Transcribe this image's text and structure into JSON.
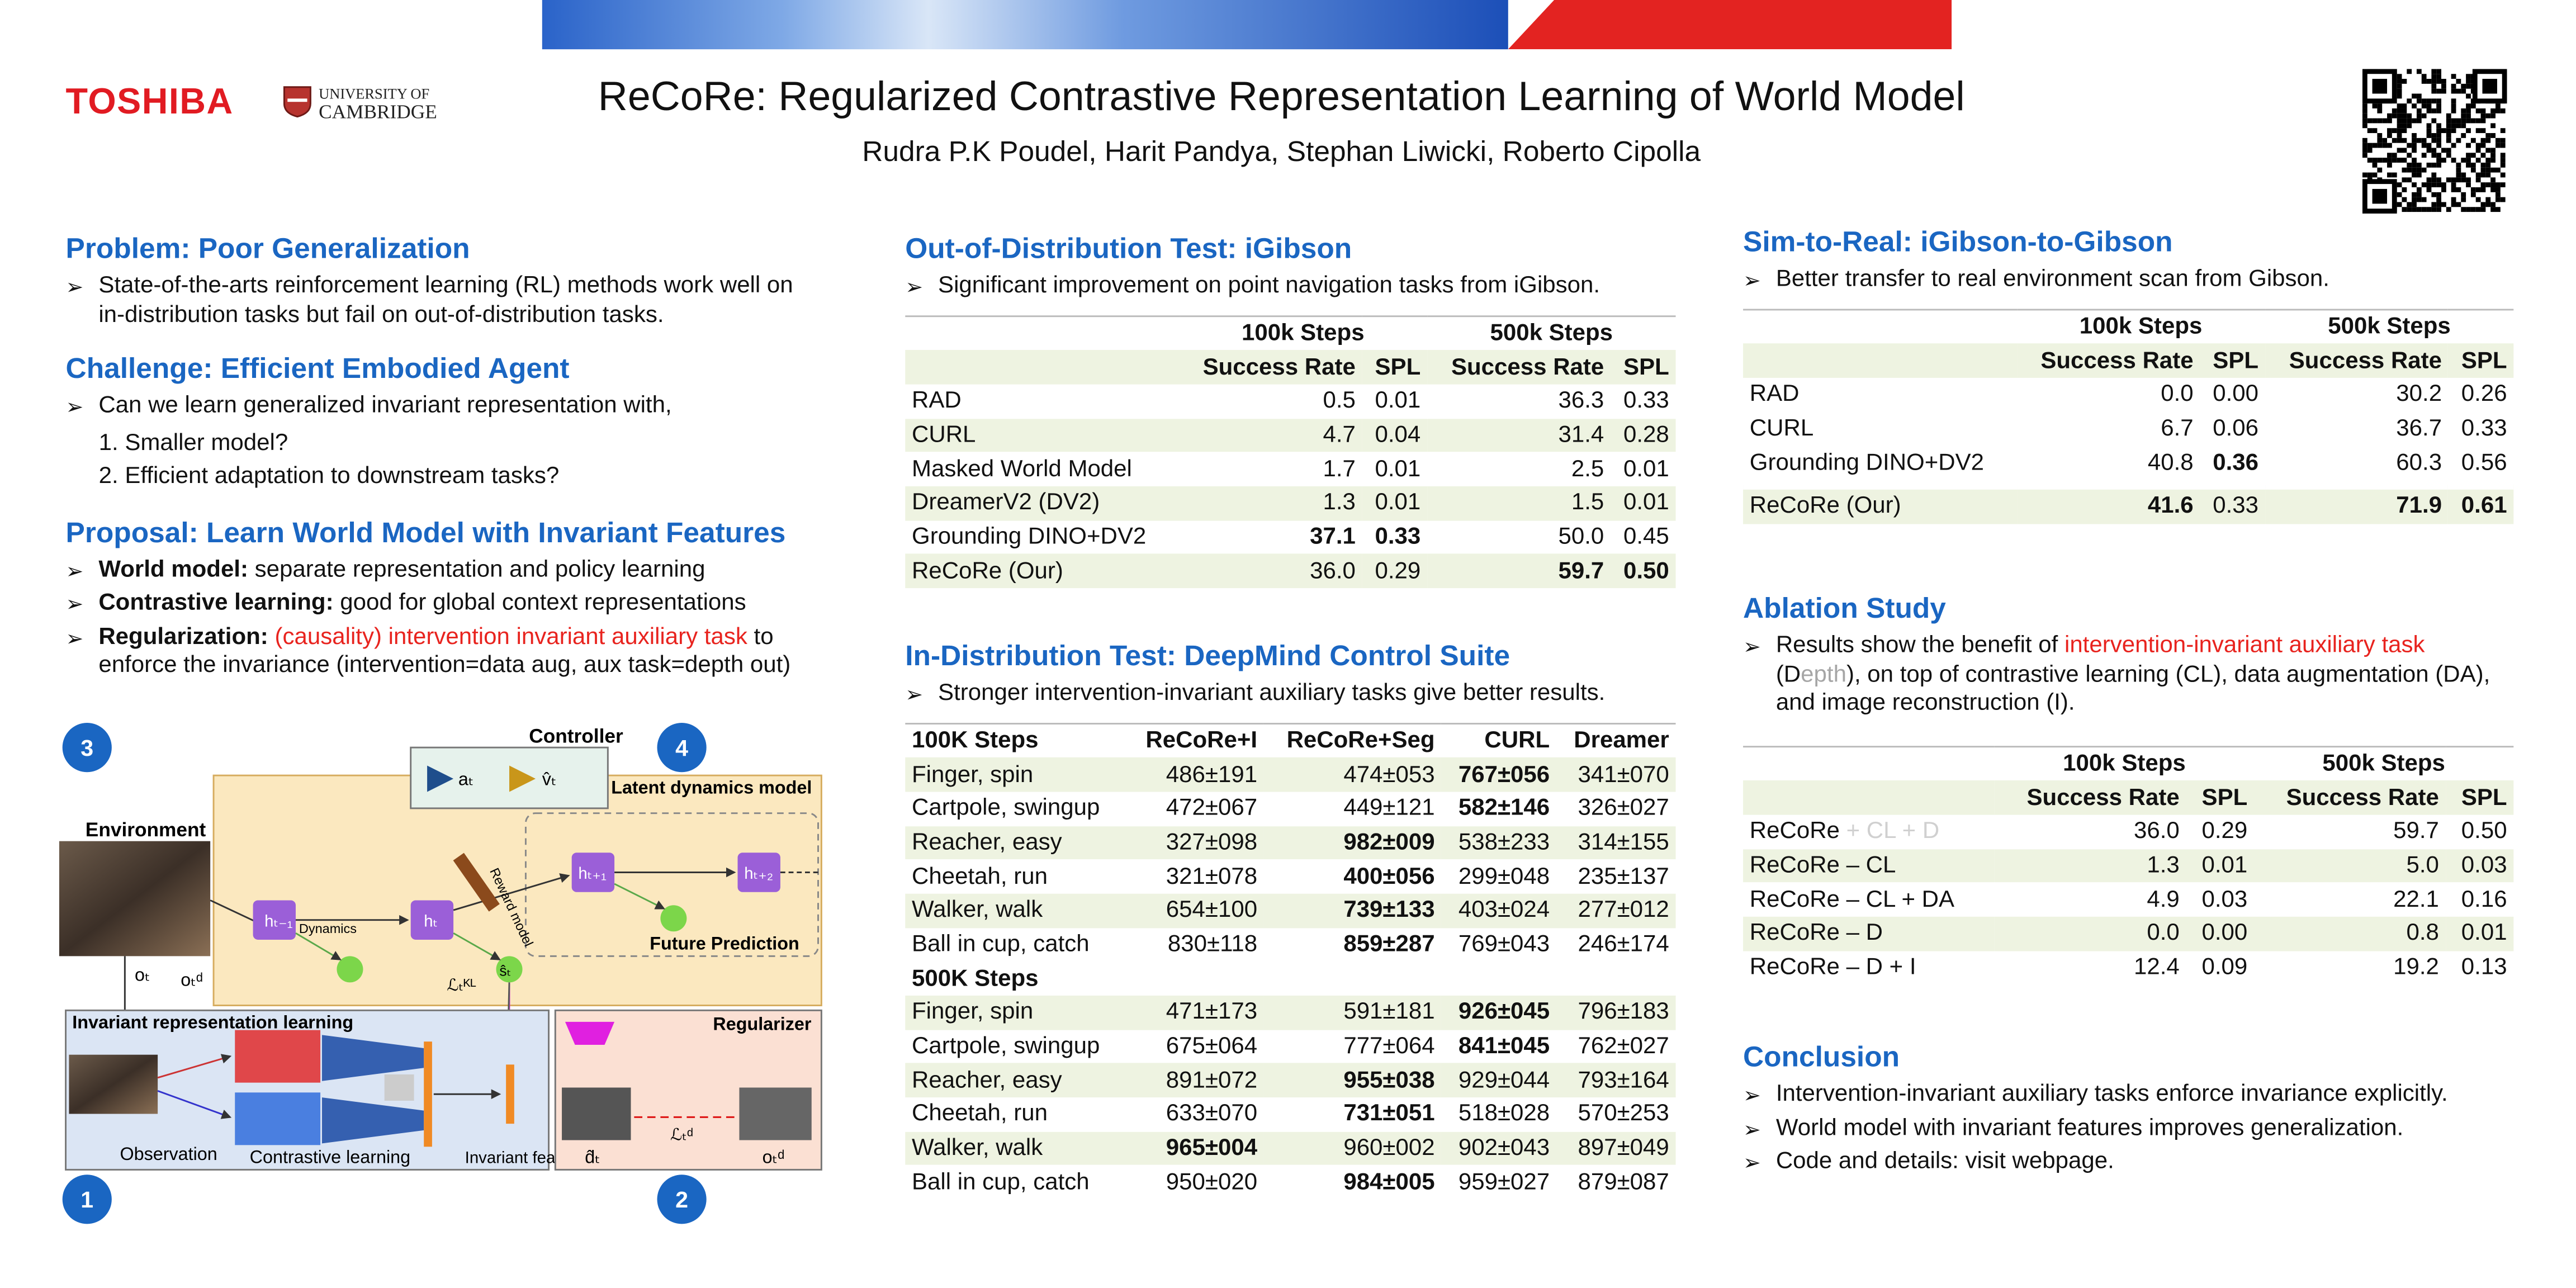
{
  "header": {
    "org": "TOSHIBA",
    "university": [
      "UNIVERSITY OF",
      "CAMBRIDGE"
    ],
    "title": "ReCoRe: Regularized Contrastive Representation Learning of World Model",
    "authors": "Rudra P.K Poudel, Harit Pandya, Stephan Liwicki, Roberto Cipolla"
  },
  "col1": {
    "problem": {
      "title": "Problem: Poor Generalization",
      "bullets": [
        [
          {
            "text": "State-of-the-arts reinforcement learning (RL) methods work well on in-distribution tasks but fail on out-of-distribution tasks."
          }
        ]
      ]
    },
    "challenge": {
      "title": "Challenge: Efficient Embodied Agent",
      "bullets": [
        [
          {
            "text": "Can we learn generalized invariant representation with,"
          }
        ]
      ],
      "items": [
        "Smaller model?",
        "Efficient adaptation to downstream tasks?"
      ]
    },
    "proposal": {
      "title": "Proposal: Learn World Model with Invariant Features",
      "bullets": [
        [
          {
            "text": "World model:",
            "bold": true
          },
          {
            "text": " separate representation and policy learning"
          }
        ],
        [
          {
            "text": "Contrastive learning:",
            "bold": true
          },
          {
            "text": " good for global context representations"
          }
        ],
        [
          {
            "text": "Regularization:",
            "bold": true
          },
          {
            "text": " "
          },
          {
            "text": "(causality) intervention invariant auxiliary task",
            "color": "#e8231e"
          },
          {
            "text": " to enforce the invariance (intervention=data aug, aux task=depth out)"
          }
        ]
      ]
    }
  },
  "diagram": {
    "badges": [
      "3",
      "4",
      "1",
      "2"
    ],
    "controller": "Controller",
    "latent": "Latent dynamics model",
    "environment": "Environment",
    "invariant": "Invariant representation learning",
    "regularizer": "Regularizer",
    "observation": "Observation",
    "contrastive": "Contrastive learning",
    "features": "Invariant features",
    "future": "Future Prediction",
    "dynamics": "Dynamics",
    "reward": "Reward model",
    "symbols": {
      "at": "aₜ",
      "vt": "v̂ₜ",
      "htm1": "hₜ₋₁",
      "ht": "hₜ",
      "ht1": "hₜ₊₁",
      "ht2": "hₜ₊₂",
      "ot": "oₜ",
      "otd": "oₜᵈ",
      "st": "ŝₜ",
      "lkl": "ℒₜᴷᴸ",
      "ld": "ℒₜᵈ",
      "dt": "d̂ₜ"
    }
  },
  "col2": {
    "ood": {
      "title": "Out-of-Distribution Test: iGibson",
      "bullets": [
        [
          {
            "text": "Significant improvement on point navigation tasks from iGibson."
          }
        ]
      ],
      "table": {
        "groups": [
          "100k Steps",
          "500k Steps"
        ],
        "columns": [
          "Success Rate",
          "SPL",
          "Success Rate",
          "SPL"
        ],
        "rows": [
          [
            "RAD",
            "0.5",
            "0.01",
            "36.3",
            "0.33"
          ],
          [
            "CURL",
            "4.7",
            "0.04",
            "31.4",
            "0.28"
          ],
          [
            "Masked World Model",
            "1.7",
            "0.01",
            "2.5",
            "0.01"
          ],
          [
            "DreamerV2 (DV2)",
            "1.3",
            "0.01",
            "1.5",
            "0.01"
          ],
          [
            "Grounding DINO+DV2",
            "37.1",
            "0.33",
            "50.0",
            "0.45"
          ],
          [
            "ReCoRe (Our)",
            "36.0",
            "0.29",
            "59.7",
            "0.50"
          ]
        ],
        "bold": [
          [
            4,
            1
          ],
          [
            4,
            2
          ],
          [
            5,
            3
          ],
          [
            5,
            4
          ]
        ],
        "shaded": [
          1,
          3,
          5
        ]
      }
    },
    "dmc": {
      "title": "In-Distribution Test: DeepMind Control Suite",
      "bullets": [
        [
          {
            "text": "Stronger intervention-invariant auxiliary tasks give better results."
          }
        ]
      ],
      "table": {
        "columns": [
          "100K Steps",
          "ReCoRe+I",
          "ReCoRe+Seg",
          "CURL",
          "Dreamer"
        ],
        "rows": [
          [
            "Finger, spin",
            "486±191",
            "474±053",
            "767±056",
            "341±070"
          ],
          [
            "Cartpole, swingup",
            "472±067",
            "449±121",
            "582±146",
            "326±027"
          ],
          [
            "Reacher, easy",
            "327±098",
            "982±009",
            "538±233",
            "314±155"
          ],
          [
            "Cheetah, run",
            "321±078",
            "400±056",
            "299±048",
            "235±137"
          ],
          [
            "Walker, walk",
            "654±100",
            "739±133",
            "403±024",
            "277±012"
          ],
          [
            "Ball in cup, catch",
            "830±118",
            "859±287",
            "769±043",
            "246±174"
          ]
        ],
        "bold": [
          [
            0,
            3
          ],
          [
            1,
            3
          ],
          [
            2,
            2
          ],
          [
            3,
            2
          ],
          [
            4,
            2
          ],
          [
            5,
            2
          ]
        ],
        "shaded": [
          0,
          2,
          4
        ],
        "subheader": "500K Steps",
        "rows2": [
          [
            "Finger, spin",
            "471±173",
            "591±181",
            "926±045",
            "796±183"
          ],
          [
            "Cartpole, swingup",
            "675±064",
            "777±064",
            "841±045",
            "762±027"
          ],
          [
            "Reacher, easy",
            "891±072",
            "955±038",
            "929±044",
            "793±164"
          ],
          [
            "Cheetah, run",
            "633±070",
            "731±051",
            "518±028",
            "570±253"
          ],
          [
            "Walker, walk",
            "965±004",
            "960±002",
            "902±043",
            "897±049"
          ],
          [
            "Ball in cup, catch",
            "950±020",
            "984±005",
            "959±027",
            "879±087"
          ]
        ],
        "bold2": [
          [
            0,
            3
          ],
          [
            1,
            3
          ],
          [
            2,
            2
          ],
          [
            3,
            2
          ],
          [
            4,
            1
          ],
          [
            5,
            2
          ]
        ],
        "shaded2": [
          0,
          2,
          4
        ]
      }
    }
  },
  "col3": {
    "sim": {
      "title": "Sim-to-Real: iGibson-to-Gibson",
      "bullets": [
        [
          {
            "text": "Better transfer to real environment scan from Gibson."
          }
        ]
      ],
      "table": {
        "groups": [
          "100k Steps",
          "500k Steps"
        ],
        "columns": [
          "Success Rate",
          "SPL",
          "Success Rate",
          "SPL"
        ],
        "rows": [
          [
            "RAD",
            "0.0",
            "0.00",
            "30.2",
            "0.26"
          ],
          [
            "CURL",
            "6.7",
            "0.06",
            "36.7",
            "0.33"
          ],
          [
            "Grounding DINO+DV2",
            "40.8",
            "0.36",
            "60.3",
            "0.56"
          ],
          [
            "ReCoRe (Our)",
            "41.6",
            "0.33",
            "71.9",
            "0.61"
          ]
        ],
        "bold": [
          [
            2,
            2
          ],
          [
            3,
            1
          ],
          [
            3,
            3
          ],
          [
            3,
            4
          ]
        ],
        "shaded": [
          3
        ],
        "gap_before": 3
      }
    },
    "ablation": {
      "title": "Ablation Study",
      "bullets": [
        [
          {
            "text": "Results show the benefit of "
          },
          {
            "text": "intervention-invariant auxiliary task",
            "color": "#e8231e"
          },
          {
            "text": " (D"
          },
          {
            "text": "epth",
            "color": "#a6a6a6"
          },
          {
            "text": "), on top of contrastive learning (CL), data augmentation (DA), and image reconstruction (I)."
          }
        ]
      ],
      "table": {
        "groups": [
          "100k Steps",
          "500k Steps"
        ],
        "columns": [
          "Success Rate",
          "SPL",
          "Success Rate",
          "SPL"
        ],
        "rows": [
          [
            [
              {
                "text": "ReCoRe"
              },
              {
                "text": " + CL + D",
                "color": "#d0d0d0"
              }
            ],
            "36.0",
            "0.29",
            "59.7",
            "0.50"
          ],
          [
            "ReCoRe – CL",
            "1.3",
            "0.01",
            "5.0",
            "0.03"
          ],
          [
            "ReCoRe – CL + DA",
            "4.9",
            "0.03",
            "22.1",
            "0.16"
          ],
          [
            "ReCoRe – D",
            "0.0",
            "0.00",
            "0.8",
            "0.01"
          ],
          [
            "ReCoRe – D + I",
            "12.4",
            "0.09",
            "19.2",
            "0.13"
          ]
        ],
        "bold": [],
        "shaded": [
          1,
          3
        ]
      }
    },
    "conclusion": {
      "title": "Conclusion",
      "bullets": [
        [
          {
            "text": "Intervention-invariant auxiliary tasks enforce invariance explicitly."
          }
        ],
        [
          {
            "text": "World model with invariant features improves generalization."
          }
        ],
        [
          {
            "text": "Code and details: visit webpage."
          }
        ]
      ]
    }
  }
}
